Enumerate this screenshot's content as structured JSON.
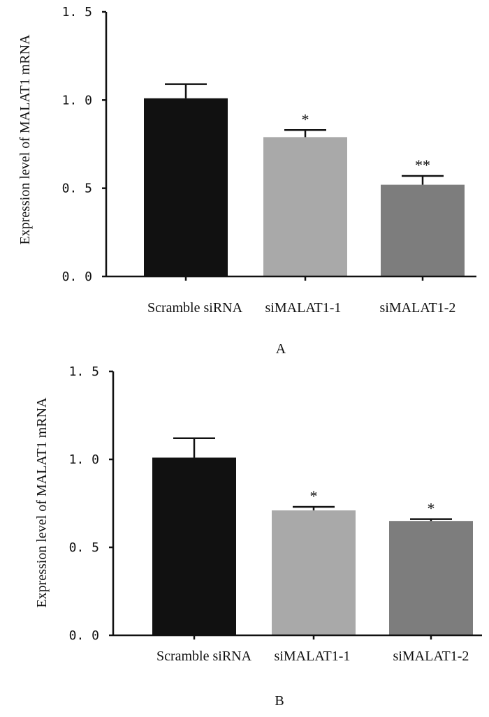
{
  "chart_data": [
    {
      "type": "bar",
      "panel": "A",
      "ylabel": "Expression level of MALAT1 mRNA",
      "ylim": [
        0,
        1.5
      ],
      "yticks": [
        "0. 0",
        "0. 5",
        "1. 0",
        "1. 5"
      ],
      "categories": [
        "Scramble siRNA",
        "siMALAT1-1",
        "siMALAT1-2"
      ],
      "values": [
        1.01,
        0.79,
        0.52
      ],
      "errors": [
        0.08,
        0.04,
        0.05
      ],
      "significance": [
        "",
        "*",
        "**"
      ],
      "colors": [
        "#111111",
        "#a9a9a9",
        "#7d7d7d"
      ]
    },
    {
      "type": "bar",
      "panel": "B",
      "ylabel": "Expression level of MALAT1 mRNA",
      "ylim": [
        0,
        1.5
      ],
      "yticks": [
        "0. 0",
        "0. 5",
        "1. 0",
        "1. 5"
      ],
      "categories": [
        "Scramble siRNA",
        "siMALAT1-1",
        "siMALAT1-2"
      ],
      "values": [
        1.01,
        0.71,
        0.65
      ],
      "errors": [
        0.11,
        0.02,
        0.01
      ],
      "significance": [
        "",
        "*",
        "*"
      ],
      "colors": [
        "#111111",
        "#a9a9a9",
        "#7d7d7d"
      ]
    }
  ]
}
